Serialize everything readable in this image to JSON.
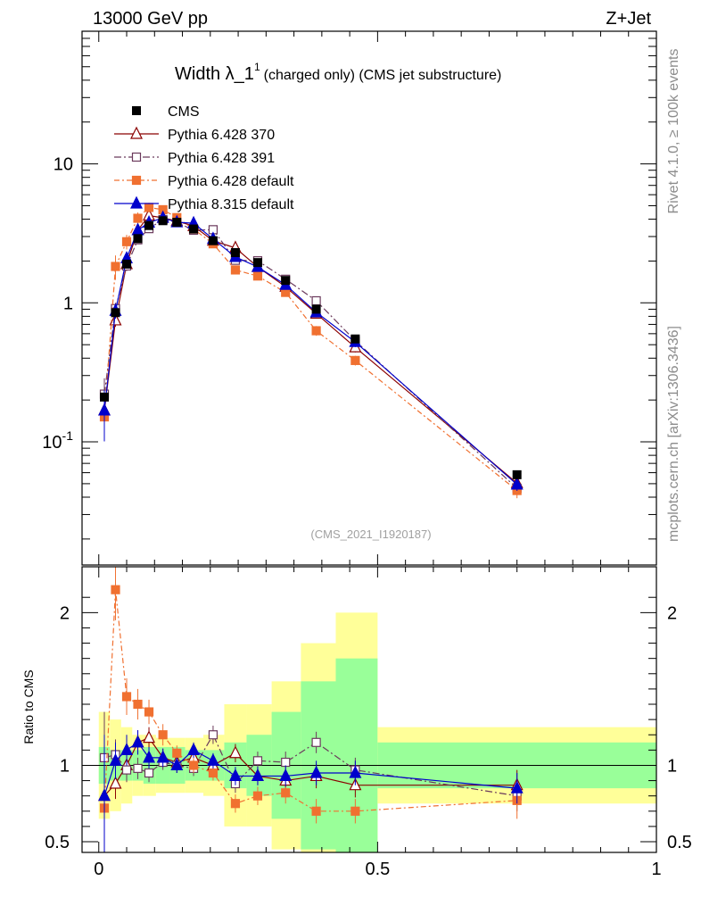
{
  "header": {
    "energy": "13000 GeV pp",
    "process": "Z+Jet"
  },
  "side_texts": {
    "rivet": "Rivet 4.1.0, ≥ 100k events",
    "mcplots": "mcplots.cern.ch [arXiv:1306.3436]"
  },
  "chart_data": {
    "type": "line",
    "title": "Width λ_1^1 (charged only) (CMS jet substructure)",
    "title_main": "Width λ_1",
    "title_sup": "1",
    "title_sub": "(charged only) (CMS jet substructure)",
    "analysis": "(CMS_2021_I1920187)",
    "xlabel": "",
    "ylabel": "",
    "ratio_ylabel": "Ratio to CMS",
    "xlim": [
      -0.03,
      1.0
    ],
    "ylim_main": [
      0.013,
      90
    ],
    "ylim_ratio": [
      0.43,
      2.3
    ],
    "yscale_main": "log",
    "x_ticks": [
      "0",
      "0.5",
      "1"
    ],
    "y_ticks_main": [
      "10",
      "1",
      "10^-1"
    ],
    "y_ticks_ratio": [
      "2",
      "1",
      "0.5"
    ],
    "legend_position": "top-left",
    "x": [
      0.01,
      0.03,
      0.05,
      0.07,
      0.09,
      0.115,
      0.14,
      0.17,
      0.205,
      0.245,
      0.285,
      0.335,
      0.39,
      0.46,
      0.75
    ],
    "cms": [
      0.21,
      0.85,
      1.9,
      2.9,
      3.6,
      3.9,
      3.8,
      3.4,
      2.8,
      2.3,
      1.95,
      1.45,
      0.9,
      0.55,
      0.058
    ],
    "cms_band_inner": [
      0.12,
      0.1,
      0.1,
      0.1,
      0.12,
      0.12,
      0.12,
      0.1,
      0.1,
      0.15,
      0.2,
      0.35,
      0.55,
      0.7,
      0.15
    ],
    "cms_band_outer": [
      0.35,
      0.3,
      0.25,
      0.2,
      0.2,
      0.18,
      0.18,
      0.18,
      0.2,
      0.4,
      0.4,
      0.55,
      0.8,
      1.0,
      0.25
    ],
    "series": [
      {
        "name": "Pythia 6.428 370",
        "color": "#8b0000",
        "marker": "open-triangle",
        "dash": "",
        "ratio": [
          0.8,
          0.88,
          1.0,
          1.15,
          1.18,
          1.05,
          1.02,
          1.05,
          1.0,
          1.08,
          0.93,
          0.9,
          0.93,
          0.87,
          0.87
        ],
        "ratio_err": [
          0.35,
          0.1,
          0.1,
          0.08,
          0.07,
          0.06,
          0.05,
          0.05,
          0.05,
          0.06,
          0.06,
          0.07,
          0.08,
          0.08,
          0.1
        ]
      },
      {
        "name": "Pythia 6.428 391",
        "color": "#6b3a5c",
        "marker": "open-square",
        "dash": "8,3,2,3",
        "ratio": [
          1.05,
          1.07,
          0.97,
          0.98,
          0.95,
          1.02,
          1.0,
          0.98,
          1.2,
          0.88,
          1.03,
          1.02,
          1.15,
          0.97,
          0.8
        ],
        "ratio_err": [
          0.3,
          0.1,
          0.08,
          0.07,
          0.06,
          0.05,
          0.05,
          0.05,
          0.06,
          0.06,
          0.06,
          0.07,
          0.07,
          0.08,
          0.1
        ]
      },
      {
        "name": "Pythia 6.428 default",
        "color": "#f07030",
        "marker": "filled-square",
        "dash": "6,3,2,3",
        "ratio": [
          0.72,
          2.15,
          1.45,
          1.4,
          1.35,
          1.2,
          1.08,
          1.0,
          0.95,
          0.75,
          0.8,
          0.82,
          0.7,
          0.7,
          0.77
        ],
        "ratio_err": [
          0.3,
          0.2,
          0.12,
          0.1,
          0.08,
          0.07,
          0.05,
          0.05,
          0.05,
          0.06,
          0.06,
          0.07,
          0.08,
          0.08,
          0.12
        ]
      },
      {
        "name": "Pythia 8.315 default",
        "color": "#0000cc",
        "marker": "filled-triangle",
        "dash": "",
        "ratio": [
          0.8,
          1.03,
          1.1,
          1.15,
          1.05,
          1.05,
          1.0,
          1.1,
          1.03,
          0.93,
          0.93,
          0.93,
          0.95,
          0.95,
          0.85
        ],
        "ratio_err": [
          0.4,
          0.12,
          0.1,
          0.08,
          0.07,
          0.06,
          0.05,
          0.05,
          0.05,
          0.06,
          0.06,
          0.07,
          0.08,
          0.08,
          0.1
        ]
      }
    ]
  }
}
